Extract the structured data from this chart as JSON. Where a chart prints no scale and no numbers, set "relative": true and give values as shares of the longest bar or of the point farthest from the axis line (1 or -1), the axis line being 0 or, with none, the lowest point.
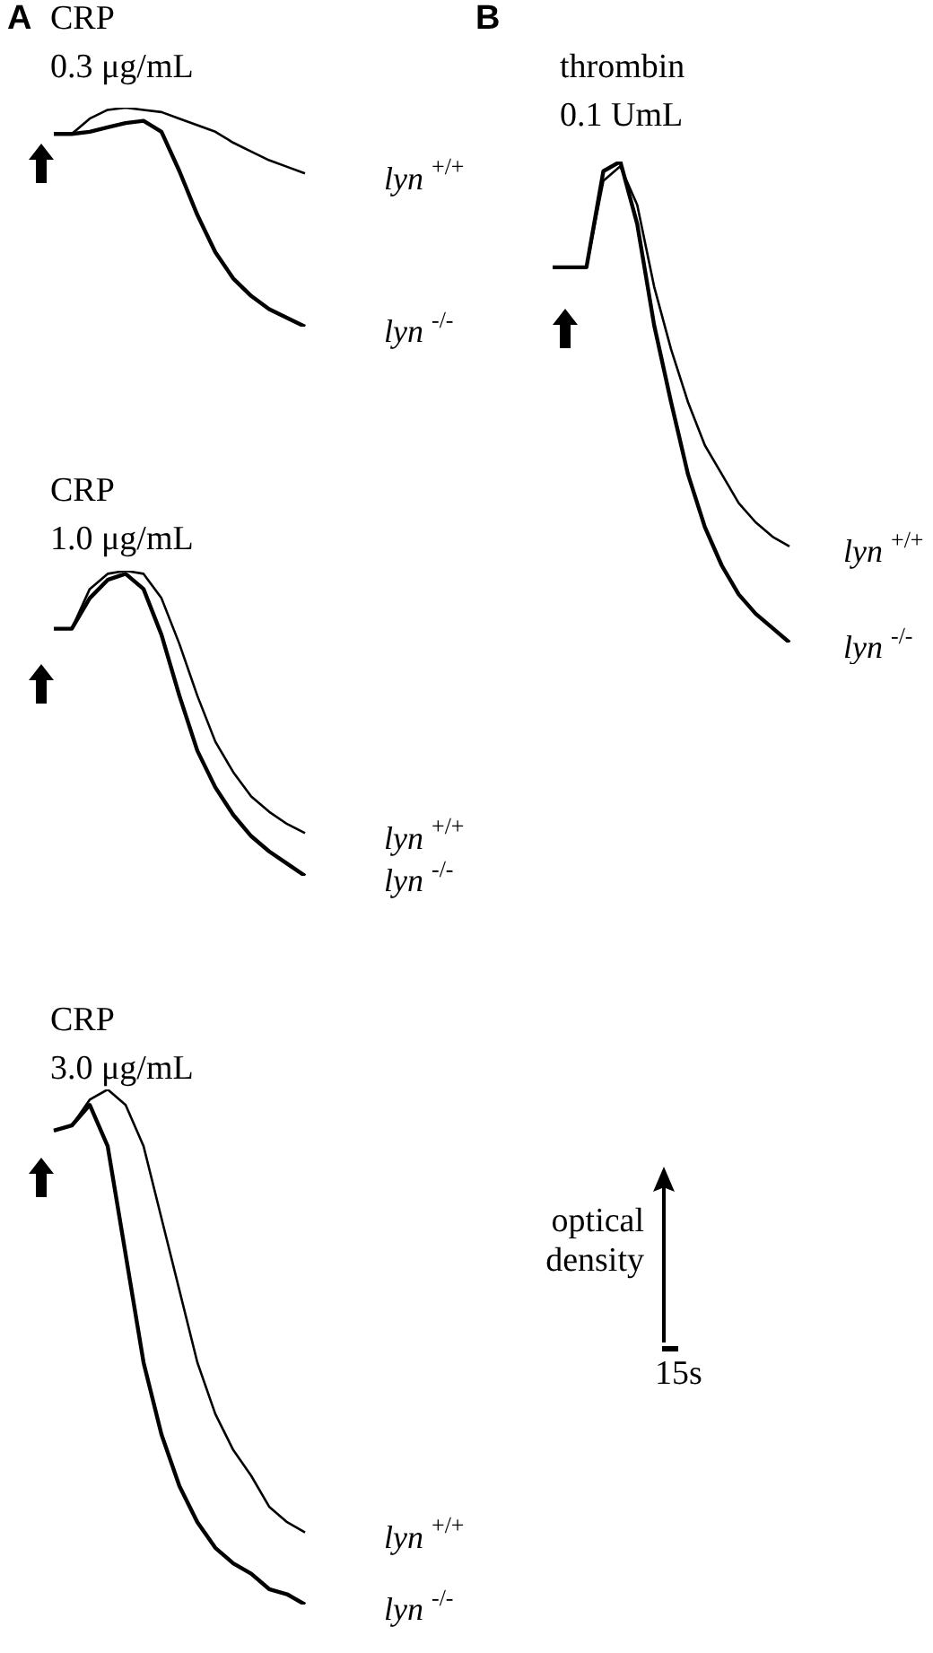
{
  "chart_data": [
    {
      "type": "line",
      "title": "CRP",
      "subtitle": "0.3 μg/mL",
      "annotations": [
        "A"
      ],
      "relative": true,
      "marker": "none",
      "categories": [
        null,
        null,
        null,
        null,
        null,
        null,
        null,
        null,
        null,
        null,
        null,
        null,
        null,
        null,
        null
      ],
      "series": [
        {
          "name": "lyn $^{+/+}$",
          "color": "#000000",
          "values": [
            0.88,
            0.88,
            0.95,
            0.99,
            1.0,
            0.99,
            0.98,
            0.95,
            0.92,
            0.89,
            0.84,
            0.8,
            0.76,
            0.73,
            0.7
          ]
        },
        {
          "name": "lyn $^{-/-}$",
          "color": "#000000",
          "values": [
            0.88,
            0.88,
            0.89,
            0.91,
            0.93,
            0.94,
            0.89,
            0.71,
            0.51,
            0.34,
            0.22,
            0.14,
            0.08,
            0.04,
            0
          ]
        }
      ]
    },
    {
      "type": "line",
      "title": "thrombin",
      "subtitle": "0.1 UmL",
      "annotations": [
        "B",
        "optical density",
        "15s"
      ],
      "relative": true,
      "marker": "none",
      "categories": [
        null,
        null,
        null,
        null,
        null,
        null,
        null,
        null,
        null,
        null,
        null,
        null,
        null,
        null,
        null
      ],
      "series": [
        {
          "name": "lyn $^{+/+}$",
          "color": "#000000",
          "values": [
            0.78,
            0.78,
            0.78,
            0.96,
            0.99,
            0.91,
            0.74,
            0.61,
            0.5,
            0.41,
            0.35,
            0.29,
            0.25,
            0.22,
            0.2
          ]
        },
        {
          "name": "lyn $^{-/-}$",
          "color": "#000000",
          "values": [
            0.78,
            0.78,
            0.78,
            0.98,
            1.0,
            0.87,
            0.66,
            0.5,
            0.35,
            0.24,
            0.16,
            0.1,
            0.06,
            0.03,
            0
          ]
        }
      ]
    },
    {
      "type": "line",
      "title": "CRP",
      "subtitle": "1.0 μg/mL",
      "relative": true,
      "marker": "none",
      "categories": [
        null,
        null,
        null,
        null,
        null,
        null,
        null,
        null,
        null,
        null,
        null,
        null,
        null,
        null,
        null
      ],
      "series": [
        {
          "name": "lyn $^{+/+}$",
          "color": "#000000",
          "values": [
            0.81,
            0.81,
            0.94,
            0.99,
            1.0,
            0.99,
            0.91,
            0.76,
            0.59,
            0.44,
            0.34,
            0.26,
            0.21,
            0.17,
            0.14
          ]
        },
        {
          "name": "lyn $^{-/-}$",
          "color": "#000000",
          "values": [
            0.81,
            0.81,
            0.91,
            0.97,
            0.99,
            0.94,
            0.79,
            0.59,
            0.41,
            0.29,
            0.2,
            0.13,
            0.08,
            0.04,
            0
          ]
        }
      ]
    },
    {
      "type": "line",
      "title": "CRP",
      "subtitle": "3.0 μg/mL",
      "relative": true,
      "marker": "none",
      "categories": [
        null,
        null,
        null,
        null,
        null,
        null,
        null,
        null,
        null,
        null,
        null,
        null,
        null,
        null,
        null
      ],
      "series": [
        {
          "name": "lyn $^{+/+}$",
          "color": "#000000",
          "values": [
            0.92,
            0.93,
            0.98,
            1.0,
            0.97,
            0.89,
            0.75,
            0.61,
            0.47,
            0.37,
            0.3,
            0.25,
            0.19,
            0.16,
            0.14
          ]
        },
        {
          "name": "lyn $^{-/-}$",
          "color": "#000000",
          "values": [
            0.92,
            0.93,
            0.97,
            0.89,
            0.68,
            0.47,
            0.33,
            0.23,
            0.16,
            0.11,
            0.08,
            0.06,
            0.03,
            0.02,
            0
          ]
        }
      ]
    }
  ]
}
